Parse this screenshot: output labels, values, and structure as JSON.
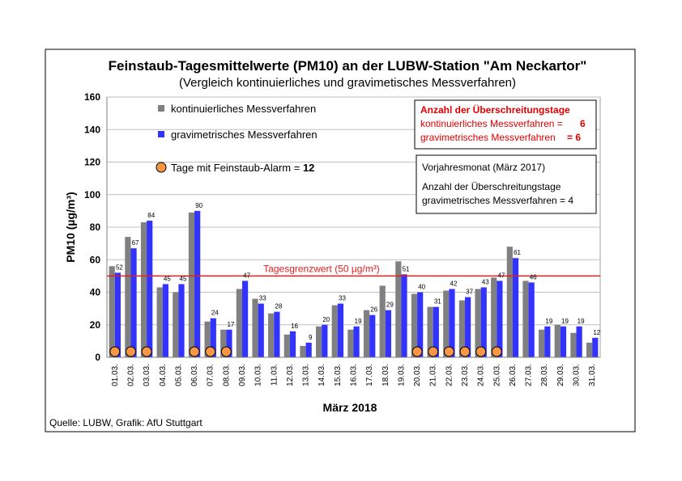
{
  "chart_data": {
    "type": "bar",
    "title": "Feinstaub-Tagesmittelwerte (PM10) an der LUBW-Station \"Am Neckartor\"",
    "subtitle": "(Vergleich kontinuierliches und gravimetisches Messverfahren)",
    "xlabel": "März 2018",
    "ylabel": "PM10 (µg/m³)",
    "ylim": [
      0,
      160
    ],
    "yticks": [
      "0",
      "20",
      "40",
      "60",
      "80",
      "100",
      "120",
      "140",
      "160"
    ],
    "grid": true,
    "categories": [
      "01.03.",
      "02.03.",
      "03.03.",
      "04.03.",
      "05.03.",
      "06.03.",
      "07.03.",
      "08.03.",
      "09.03.",
      "10.03.",
      "11.03.",
      "12.03.",
      "13.03.",
      "14.03.",
      "15.03.",
      "16.03.",
      "17.03.",
      "18.03.",
      "19.03.",
      "20.03.",
      "21.03.",
      "22.03.",
      "23.03.",
      "24.03.",
      "25.03.",
      "26.03.",
      "27.03.",
      "28.03.",
      "29.03.",
      "30.03.",
      "31.03."
    ],
    "series": [
      {
        "name": "kontinuierliches Messverfahren",
        "color": "#808080",
        "values": [
          56,
          74,
          83,
          43,
          40,
          89,
          22,
          17,
          42,
          36,
          27,
          14,
          7,
          19,
          32,
          17,
          29,
          44,
          59,
          39,
          31,
          41,
          35,
          42,
          49,
          68,
          47,
          17,
          20,
          15,
          9
        ]
      },
      {
        "name": "gravimetrisches Messverfahren",
        "color": "#3333ff",
        "values": [
          52,
          67,
          84,
          45,
          45,
          90,
          24,
          17,
          47,
          33,
          28,
          16,
          9,
          20,
          33,
          19,
          26,
          29,
          51,
          40,
          31,
          42,
          37,
          43,
          47,
          61,
          46,
          19,
          19,
          19,
          12
        ],
        "data_labels": [
          "52",
          "67",
          "84",
          "45",
          "45",
          "90",
          "24",
          "17",
          "47",
          "33",
          "28",
          "16",
          "9",
          "20",
          "33",
          "19",
          "26",
          "29",
          "51",
          "40",
          "31",
          "42",
          "37",
          "43",
          "47",
          "61",
          "46",
          "19",
          "19",
          "19",
          "12"
        ]
      }
    ],
    "alarm_days": [
      "01.03.",
      "02.03.",
      "03.03.",
      "06.03.",
      "07.03.",
      "08.03.",
      "20.03.",
      "21.03.",
      "22.03.",
      "23.03.",
      "24.03.",
      "25.03."
    ],
    "alarm_color": "#f79646",
    "threshold": {
      "value": 50,
      "label": "Tagesgrenzwert (50 µg/m³)",
      "color": "#e02020"
    },
    "legend": {
      "placement": "top-left",
      "kont_label": "kontinuierliches Messverfahren",
      "grav_label": "gravimetrisches Messverfahren",
      "alarm_prefix": "Tage mit Feinstaub-Alarm = ",
      "alarm_count": "12"
    },
    "box_exceed": {
      "heading": "Anzahl der Überschreitungstage",
      "line1": "kontinuierliches Messverfahren =",
      "value1": "6",
      "line2": "gravimetrisches Messverfahren",
      "value2": "= 6",
      "color": "#e00000"
    },
    "box_prev": {
      "line1": "Vorjahresmonat (März 2017)",
      "line2": "Anzahl der Überschreitungstage",
      "line3": "gravimetrisches Messverfahren = 4"
    },
    "source": "Quelle: LUBW, Grafik: AfU Stuttgart"
  }
}
